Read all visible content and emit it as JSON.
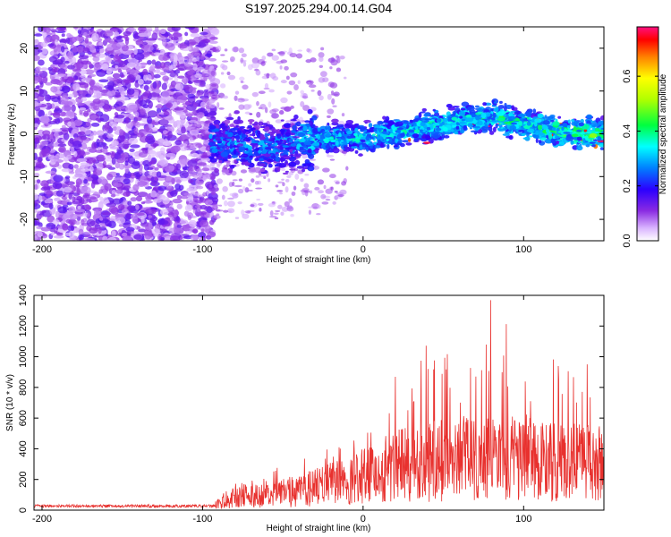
{
  "title": "S197.2025.294.00.14.G04",
  "chart_data": [
    {
      "type": "heatmap",
      "name": "spectrogram",
      "xlabel": "Height of straight line (km)",
      "ylabel": "Frequency (Hz)",
      "xlim": [
        -205,
        150
      ],
      "ylim": [
        -25,
        25
      ],
      "xticks": [
        -200,
        -100,
        0,
        100
      ],
      "yticks": [
        -20,
        -10,
        0,
        10,
        20
      ],
      "signal_ridge": {
        "x": [
          -90,
          -60,
          -30,
          0,
          30,
          60,
          80,
          100,
          130,
          150
        ],
        "y": [
          -2,
          -3,
          -1,
          -1,
          1,
          3,
          4,
          2,
          0,
          0
        ]
      },
      "colorbar": {
        "label": "Normalized spectral amplitude",
        "range": [
          0,
          0.78
        ],
        "ticks": [
          0.0,
          0.2,
          0.4,
          0.6
        ],
        "tick_labels": [
          "0.0",
          "0.2",
          "0.4",
          "0.6"
        ]
      }
    },
    {
      "type": "line",
      "name": "snr",
      "xlabel": "Height of straight line (km)",
      "ylabel": "SNR (10 * v/v)",
      "xlim": [
        -205,
        150
      ],
      "ylim": [
        0,
        1400
      ],
      "xticks": [
        -200,
        -100,
        0,
        100
      ],
      "yticks": [
        0,
        200,
        400,
        600,
        800,
        1000,
        1200,
        1400
      ],
      "color": "#e8312e",
      "envelope": {
        "x": [
          -205,
          -100,
          -90,
          -80,
          -60,
          -40,
          -20,
          0,
          20,
          40,
          60,
          80,
          100,
          120,
          150
        ],
        "mean": [
          25,
          25,
          40,
          90,
          110,
          130,
          180,
          230,
          300,
          330,
          360,
          340,
          360,
          330,
          330
        ],
        "peak": [
          40,
          40,
          80,
          180,
          260,
          320,
          420,
          520,
          900,
          1100,
          1000,
          1400,
          1000,
          1000,
          1000
        ]
      }
    }
  ]
}
